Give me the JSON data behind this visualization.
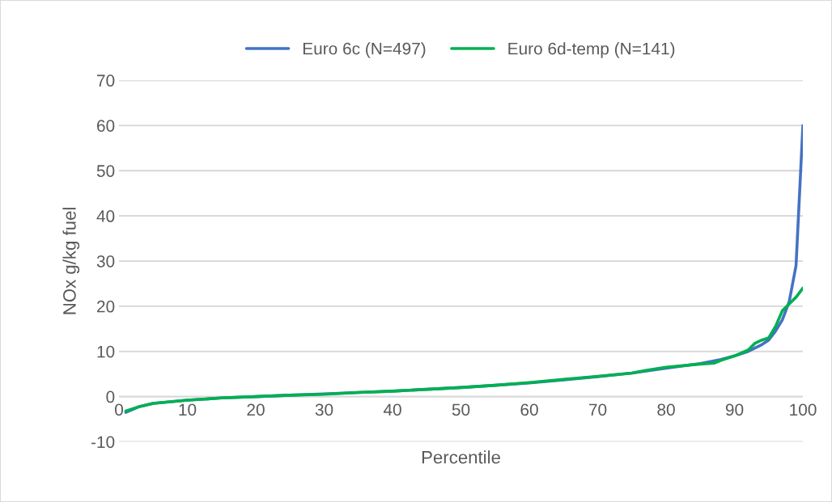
{
  "chart_data": {
    "type": "line",
    "xlabel": "Percentile",
    "ylabel": "NOx g/kg fuel",
    "xlim": [
      0,
      100
    ],
    "xticks": [
      0,
      10,
      20,
      30,
      40,
      50,
      60,
      70,
      80,
      90,
      100
    ],
    "ylim": [
      -10,
      70
    ],
    "yticks": [
      -10,
      0,
      10,
      20,
      30,
      40,
      50,
      60,
      70
    ],
    "grid": "y",
    "legend": "top",
    "marker": "none",
    "line_style": "solid",
    "series": [
      {
        "name": "Euro 6c (N=497)",
        "color": "#4472c4",
        "x": [
          1,
          3,
          5,
          10,
          15,
          20,
          25,
          30,
          35,
          40,
          45,
          50,
          55,
          60,
          65,
          70,
          75,
          80,
          85,
          88,
          90,
          92,
          94,
          95,
          96,
          97,
          98,
          99,
          100
        ],
        "values": [
          -3.5,
          -2.2,
          -1.5,
          -0.8,
          -0.3,
          0,
          0.3,
          0.6,
          0.9,
          1.2,
          1.6,
          2.0,
          2.5,
          3.0,
          3.7,
          4.4,
          5.2,
          6.3,
          7.3,
          8.2,
          9.0,
          10,
          11.5,
          12.5,
          14.5,
          17,
          21,
          29,
          60
        ]
      },
      {
        "name": "Euro 6d-temp (N=141)",
        "color": "#00b050",
        "x": [
          1,
          3,
          5,
          10,
          15,
          20,
          25,
          30,
          35,
          40,
          45,
          50,
          55,
          60,
          65,
          70,
          75,
          77,
          80,
          85,
          87,
          88,
          90,
          92,
          93,
          94,
          95,
          96,
          97,
          98,
          99,
          100
        ],
        "values": [
          -3.2,
          -2.2,
          -1.5,
          -0.8,
          -0.3,
          0,
          0.3,
          0.5,
          0.9,
          1.2,
          1.6,
          2.0,
          2.5,
          3.1,
          3.8,
          4.5,
          5.2,
          5.8,
          6.5,
          7.2,
          7.4,
          8.0,
          9.0,
          10.3,
          11.8,
          12.5,
          13.0,
          15.5,
          19,
          20.5,
          22,
          24
        ]
      }
    ]
  }
}
